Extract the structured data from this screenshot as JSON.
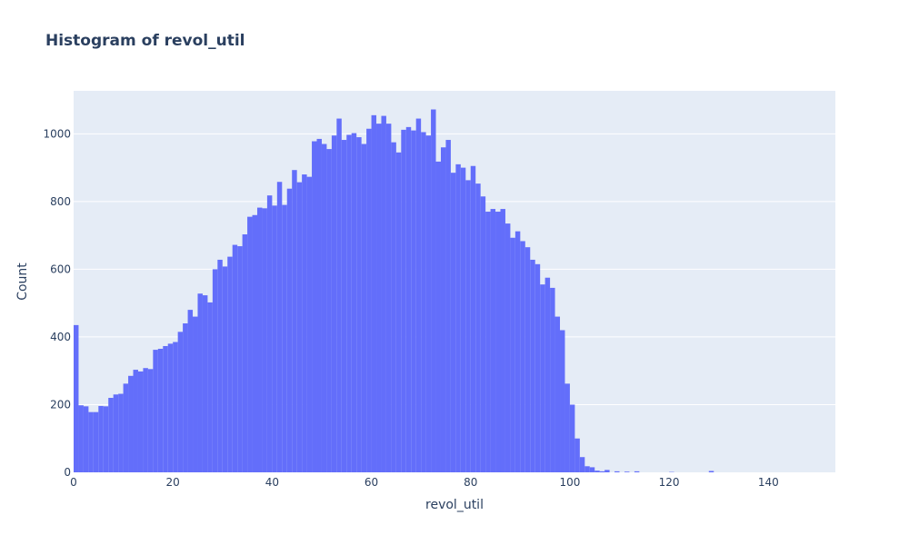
{
  "chart_data": {
    "type": "bar",
    "title": "Histogram of revol_util",
    "xlabel": "revol_util",
    "ylabel": "Count",
    "xlim": [
      0,
      153.5
    ],
    "ylim": [
      0,
      1127
    ],
    "bin_width": 1,
    "x_ticks": [
      0,
      20,
      40,
      60,
      80,
      100,
      120,
      140
    ],
    "y_ticks": [
      0,
      200,
      400,
      600,
      800,
      1000
    ],
    "grid": true,
    "legend": "none",
    "colors": {
      "bar": "#636efa",
      "plot_bg": "#e5ecf6",
      "grid": "#ffffff",
      "text": "#2a3f5f"
    },
    "series": [
      {
        "x": [
          0,
          1,
          2,
          3,
          4,
          5,
          6,
          7,
          8,
          9,
          10,
          11,
          12,
          13,
          14,
          15,
          16,
          17,
          18,
          19,
          20,
          21,
          22,
          23,
          24,
          25,
          26,
          27,
          28,
          29,
          30,
          31,
          32,
          33,
          34,
          35,
          36,
          37,
          38,
          39,
          40,
          41,
          42,
          43,
          44,
          45,
          46,
          47,
          48,
          49,
          50,
          51,
          52,
          53,
          54,
          55,
          56,
          57,
          58,
          59,
          60,
          61,
          62,
          63,
          64,
          65,
          66,
          67,
          68,
          69,
          70,
          71,
          72,
          73,
          74,
          75,
          76,
          77,
          78,
          79,
          80,
          81,
          82,
          83,
          84,
          85,
          86,
          87,
          88,
          89,
          90,
          91,
          92,
          93,
          94,
          95,
          96,
          97,
          98,
          99,
          100,
          101,
          102,
          103,
          104,
          105,
          106,
          107,
          108,
          109,
          110,
          111,
          112,
          113,
          114,
          115,
          116,
          117,
          118,
          119,
          120,
          121,
          122,
          123,
          124,
          125,
          126,
          127,
          128,
          129,
          130,
          131,
          132,
          133,
          134,
          135,
          136,
          137,
          138,
          139,
          140,
          141,
          142,
          143,
          144,
          145,
          146,
          147,
          148,
          149,
          150,
          151,
          152,
          153
        ],
        "values": [
          435,
          198,
          195,
          178,
          178,
          196,
          195,
          220,
          230,
          232,
          262,
          285,
          303,
          298,
          308,
          305,
          362,
          365,
          373,
          380,
          385,
          415,
          440,
          480,
          460,
          528,
          523,
          502,
          600,
          628,
          608,
          637,
          672,
          668,
          703,
          755,
          760,
          782,
          780,
          818,
          788,
          858,
          790,
          838,
          893,
          857,
          880,
          873,
          978,
          985,
          970,
          955,
          995,
          1045,
          982,
          997,
          1002,
          990,
          970,
          1015,
          1055,
          1030,
          1053,
          1030,
          975,
          945,
          1012,
          1020,
          1010,
          1045,
          1005,
          995,
          1072,
          918,
          960,
          982,
          885,
          910,
          900,
          863,
          905,
          853,
          815,
          770,
          778,
          770,
          778,
          735,
          693,
          712,
          683,
          665,
          628,
          615,
          555,
          575,
          545,
          460,
          420,
          262,
          200,
          100,
          45,
          18,
          15,
          5,
          3,
          7,
          0,
          3,
          0,
          2,
          0,
          3,
          0,
          0,
          0,
          0,
          0,
          0,
          1,
          0,
          0,
          0,
          0,
          0,
          0,
          0,
          4,
          0,
          0,
          0,
          0,
          0,
          0,
          0,
          0,
          0,
          0,
          0,
          0,
          0,
          0,
          0,
          0,
          0,
          0,
          0,
          0,
          0,
          0,
          0,
          0,
          0
        ]
      }
    ]
  }
}
